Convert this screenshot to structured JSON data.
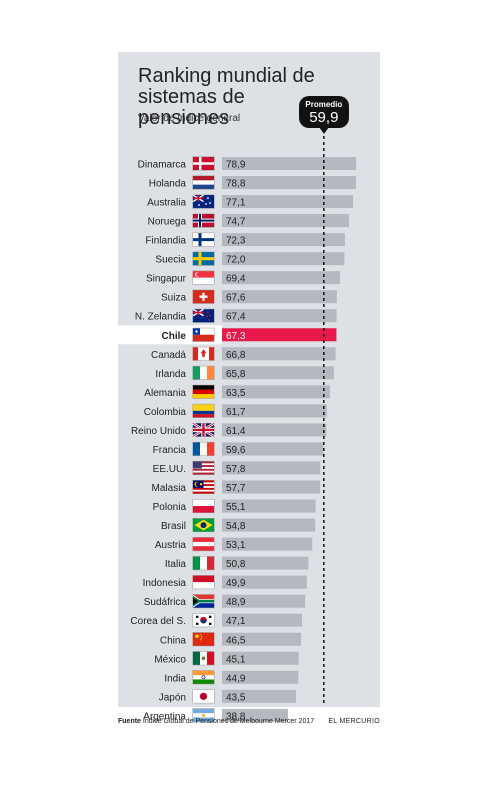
{
  "chart_data": {
    "type": "bar",
    "title": "Ranking mundial de sistemas de pensiones",
    "subtitle": "Valor de índice general",
    "average": {
      "label": "Promedio",
      "value": 59.9,
      "display": "59,9"
    },
    "highlight": "Chile",
    "colors": {
      "bar": "#b4b9bf",
      "highlight": "#e8194a",
      "average_line": "#111111"
    },
    "categories": [
      "Dinamarca",
      "Holanda",
      "Australia",
      "Noruega",
      "Finlandia",
      "Suecia",
      "Singapur",
      "Suiza",
      "N. Zelandia",
      "Chile",
      "Canadá",
      "Irlanda",
      "Alemania",
      "Colombia",
      "Reino Unido",
      "Francia",
      "EE.UU.",
      "Malasia",
      "Polonia",
      "Brasil",
      "Austria",
      "Italia",
      "Indonesia",
      "Sudáfrica",
      "Corea del S.",
      "China",
      "México",
      "India",
      "Japón",
      "Argentina"
    ],
    "values": [
      78.9,
      78.8,
      77.1,
      74.7,
      72.3,
      72.0,
      69.4,
      67.6,
      67.4,
      67.3,
      66.8,
      65.8,
      63.5,
      61.7,
      61.4,
      59.6,
      57.8,
      57.7,
      55.1,
      54.8,
      53.1,
      50.8,
      49.9,
      48.9,
      47.1,
      46.5,
      45.1,
      44.9,
      43.5,
      38.8
    ],
    "value_labels": [
      "78,9",
      "78,8",
      "77,1",
      "74,7",
      "72,3",
      "72,0",
      "69,4",
      "67,6",
      "67,4",
      "67,3",
      "66,8",
      "65,8",
      "63,5",
      "61,7",
      "61,4",
      "59,6",
      "57,8",
      "57,7",
      "55,1",
      "54,8",
      "53,1",
      "50,8",
      "49,9",
      "48,9",
      "47,1",
      "46,5",
      "45,1",
      "44,9",
      "43,5",
      "38,8"
    ],
    "flags": [
      "denmark-flag",
      "netherlands-flag",
      "australia-flag",
      "norway-flag",
      "finland-flag",
      "sweden-flag",
      "singapore-flag",
      "switzerland-flag",
      "new-zealand-flag",
      "chile-flag",
      "canada-flag",
      "ireland-flag",
      "germany-flag",
      "colombia-flag",
      "uk-flag",
      "france-flag",
      "usa-flag",
      "malaysia-flag",
      "poland-flag",
      "brazil-flag",
      "austria-flag",
      "italy-flag",
      "indonesia-flag",
      "south-africa-flag",
      "south-korea-flag",
      "china-flag",
      "mexico-flag",
      "india-flag",
      "japan-flag",
      "argentina-flag"
    ]
  },
  "footer": {
    "source_label": "Fuente",
    "source_text": "Índice Global de Pensiones de Melbourne Mercer 2017",
    "brand": "EL MERCURIO"
  }
}
